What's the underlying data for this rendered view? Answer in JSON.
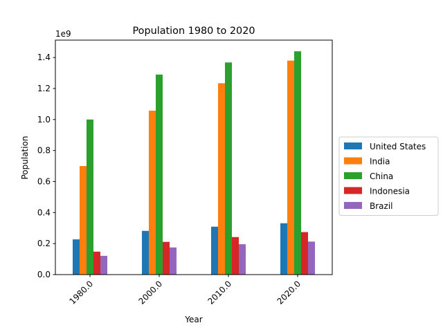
{
  "chart_data": {
    "type": "bar",
    "title": "Population 1980 to 2020",
    "xlabel": "Year",
    "ylabel": "Population",
    "y_offset_label": "1e9",
    "y_scale": 1000000000,
    "categories": [
      "1980.0",
      "2000.0",
      "2010.0",
      "2020.0"
    ],
    "ylim": [
      0,
      1.512
    ],
    "yticks": [
      {
        "value": 0.0,
        "label": "0.0"
      },
      {
        "value": 0.2,
        "label": "0.2"
      },
      {
        "value": 0.4,
        "label": "0.4"
      },
      {
        "value": 0.6,
        "label": "0.6"
      },
      {
        "value": 0.8,
        "label": "0.8"
      },
      {
        "value": 1.0,
        "label": "1.0"
      },
      {
        "value": 1.2,
        "label": "1.2"
      },
      {
        "value": 1.4,
        "label": "1.4"
      }
    ],
    "grid": false,
    "legend_position": "right",
    "series": [
      {
        "name": "United States",
        "color": "#1f77b4",
        "values": [
          0.227,
          0.282,
          0.309,
          0.331
        ]
      },
      {
        "name": "India",
        "color": "#ff7f0e",
        "values": [
          0.7,
          1.057,
          1.234,
          1.38
        ]
      },
      {
        "name": "China",
        "color": "#2ca02c",
        "values": [
          1.0,
          1.29,
          1.368,
          1.44
        ]
      },
      {
        "name": "Indonesia",
        "color": "#d62728",
        "values": [
          0.148,
          0.211,
          0.242,
          0.274
        ]
      },
      {
        "name": "Brazil",
        "color": "#9467bd",
        "values": [
          0.121,
          0.175,
          0.196,
          0.213
        ]
      }
    ]
  }
}
